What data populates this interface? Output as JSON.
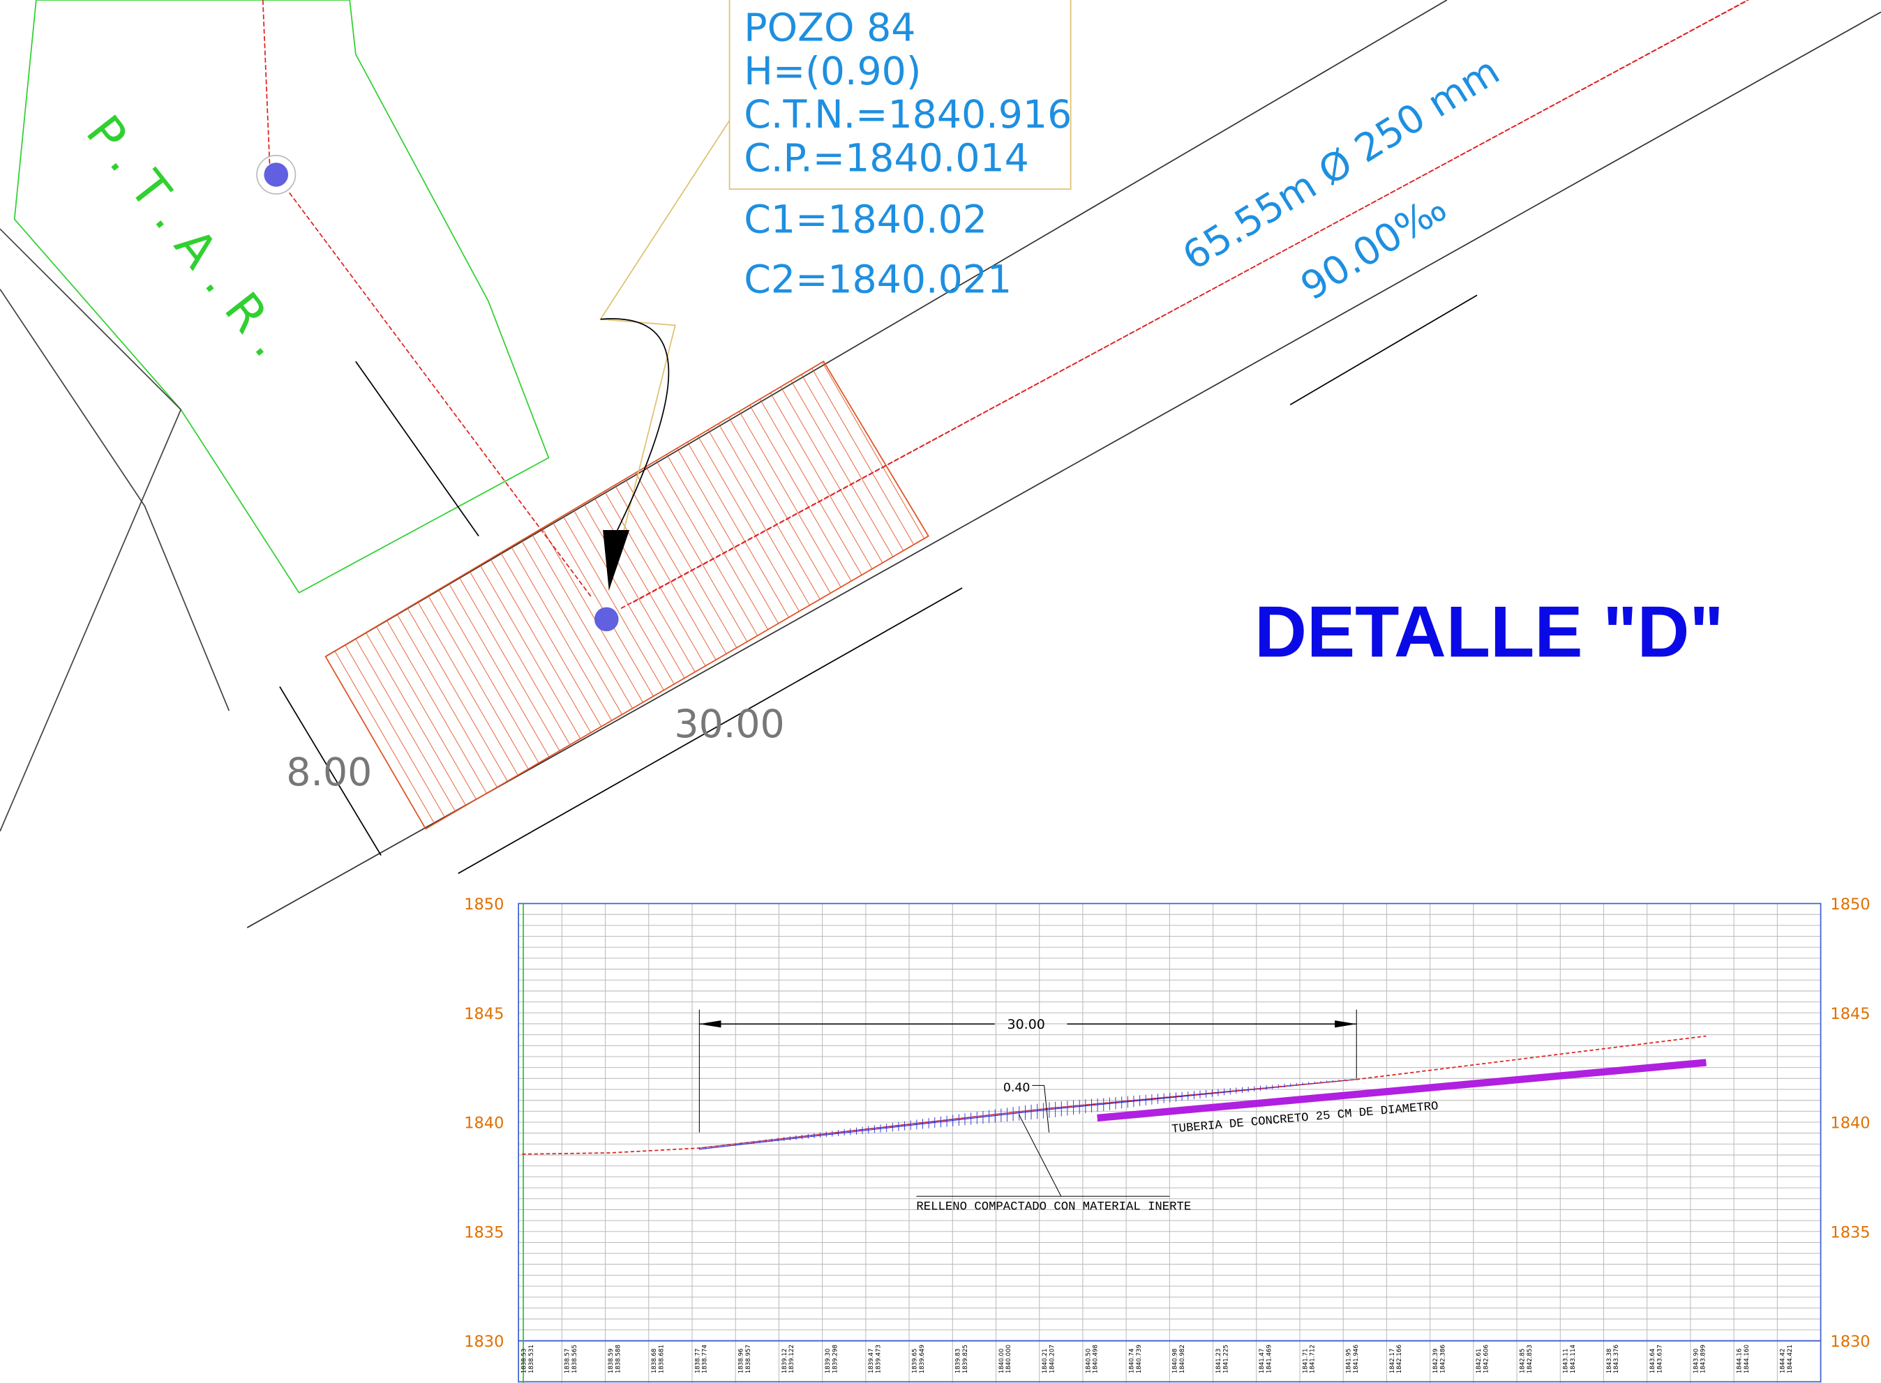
{
  "plan": {
    "ptar_label": "P.T.A.R.",
    "manhole": {
      "name": "POZO 84",
      "depth": "H=(0.90)",
      "ctn": "C.T.N.=1840.916",
      "cp": "C.P.=1840.014",
      "c1": "C1=1840.02",
      "c2": "C2=1840.021"
    },
    "pipe_length": "65.55m Ø 250 mm",
    "slope": "90.00‰",
    "dim_length": "30.00",
    "dim_width": "8.00"
  },
  "title": "DETALLE  \"D\"",
  "profile": {
    "elevation_labels": [
      "1850",
      "1845",
      "1840",
      "1835",
      "1830"
    ],
    "dim_length": "30.00",
    "cover": "0.40",
    "pipe_note": "TUBERIA DE CONCRETO 25 CM DE DIAMETRO",
    "fill_note": "RELLENO COMPACTADO CON MATERIAL INERTE",
    "stations": [
      [
        "1838.53",
        "1838.531"
      ],
      [
        "1838.57",
        "1838.565"
      ],
      [
        "1838.59",
        "1838.588"
      ],
      [
        "1838.68",
        "1838.681"
      ],
      [
        "1838.77",
        "1838.774"
      ],
      [
        "1838.96",
        "1838.957"
      ],
      [
        "1839.12",
        "1839.122"
      ],
      [
        "1839.30",
        "1839.298"
      ],
      [
        "1839.47",
        "1839.473"
      ],
      [
        "1839.65",
        "1839.649"
      ],
      [
        "1839.83",
        "1839.825"
      ],
      [
        "1840.00",
        "1840.000"
      ],
      [
        "1840.21",
        "1840.207"
      ],
      [
        "1840.50",
        "1840.498"
      ],
      [
        "1840.74",
        "1840.739"
      ],
      [
        "1840.98",
        "1840.982"
      ],
      [
        "1841.23",
        "1841.225"
      ],
      [
        "1841.47",
        "1841.469"
      ],
      [
        "1841.71",
        "1841.712"
      ],
      [
        "1841.95",
        "1841.946"
      ],
      [
        "1842.17",
        "1842.166"
      ],
      [
        "1842.39",
        "1842.386"
      ],
      [
        "1842.61",
        "1842.606"
      ],
      [
        "1842.85",
        "1842.853"
      ],
      [
        "1843.11",
        "1843.114"
      ],
      [
        "1843.38",
        "1843.376"
      ],
      [
        "1843.64",
        "1843.637"
      ],
      [
        "1843.90",
        "1843.899"
      ],
      [
        "1844.16",
        "1844.160"
      ],
      [
        "1844.42",
        "1844.421"
      ]
    ]
  }
}
